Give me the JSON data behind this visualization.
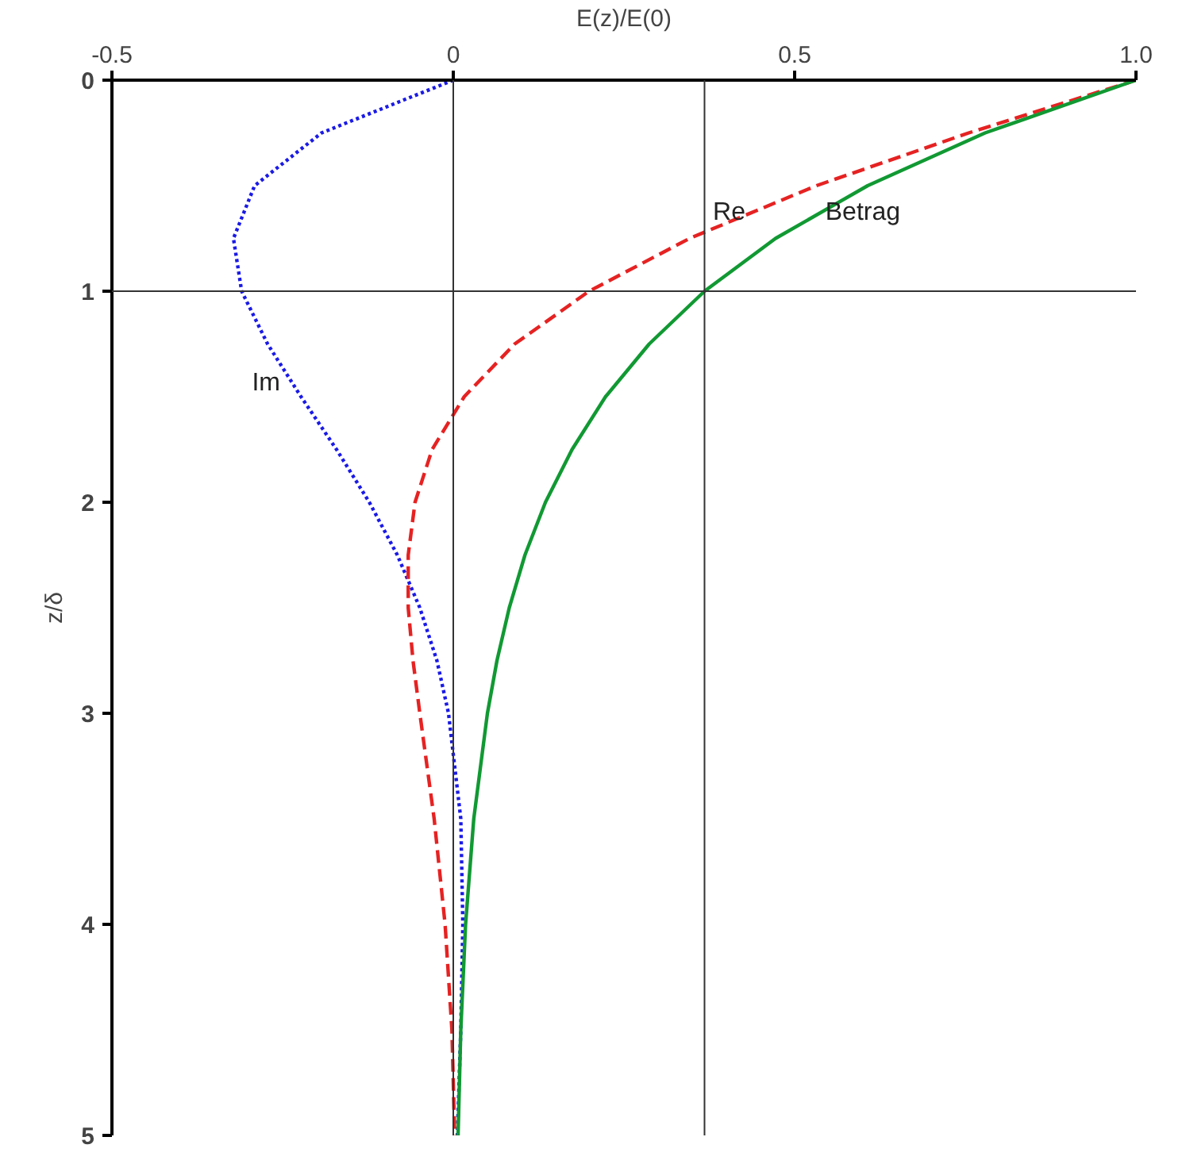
{
  "chart_data": {
    "type": "line",
    "xlabel": "E(z)/E(0)",
    "ylabel": "z/δ",
    "xlim": [
      -0.5,
      1.0
    ],
    "xticks": [
      {
        "value": -0.5,
        "label": "-0.5"
      },
      0,
      0.5,
      {
        "value": 1.0,
        "label": "1.0"
      }
    ],
    "ylim": [
      5,
      0
    ],
    "yticks": [
      0,
      1,
      2,
      3,
      4,
      5
    ],
    "grid": false,
    "legend": false,
    "series": [
      {
        "name": "Im",
        "color": "#1a1ae6",
        "line_style": "dotted",
        "x": [
          0,
          -0.193,
          -0.291,
          -0.322,
          -0.31,
          -0.272,
          -0.223,
          -0.171,
          -0.123,
          -0.082,
          -0.049,
          -0.024,
          -0.007,
          0.011,
          0.014,
          0.011,
          0.006
        ],
        "values": [
          0,
          0.25,
          0.5,
          0.75,
          1,
          1.25,
          1.5,
          1.75,
          2,
          2.25,
          2.5,
          2.75,
          3,
          3.5,
          4,
          4.5,
          5
        ]
      },
      {
        "name": "Re",
        "color": "#e62222",
        "line_style": "dashed",
        "x": [
          1,
          0.755,
          0.532,
          0.346,
          0.199,
          0.09,
          0.016,
          -0.031,
          -0.056,
          -0.066,
          -0.066,
          -0.059,
          -0.049,
          -0.028,
          -0.012,
          -0.002,
          0.002
        ],
        "values": [
          0,
          0.25,
          0.5,
          0.75,
          1,
          1.25,
          1.5,
          1.75,
          2,
          2.25,
          2.5,
          2.75,
          3,
          3.5,
          4,
          4.5,
          5
        ]
      },
      {
        "name": "Betrag",
        "color": "#119933",
        "line_style": "solid",
        "x": [
          1,
          0.779,
          0.607,
          0.472,
          0.368,
          0.287,
          0.223,
          0.174,
          0.135,
          0.105,
          0.082,
          0.064,
          0.05,
          0.03,
          0.018,
          0.011,
          0.007
        ],
        "values": [
          0,
          0.25,
          0.5,
          0.75,
          1,
          1.25,
          1.5,
          1.75,
          2,
          2.25,
          2.5,
          2.75,
          3,
          3.5,
          4,
          4.5,
          5
        ]
      }
    ],
    "ref_lines": [
      {
        "axis": "x",
        "value": 0,
        "color": "#333333"
      },
      {
        "axis": "x",
        "value": 0.368,
        "color": "#333333"
      },
      {
        "axis": "y",
        "value": 1,
        "color": "#333333"
      }
    ]
  }
}
